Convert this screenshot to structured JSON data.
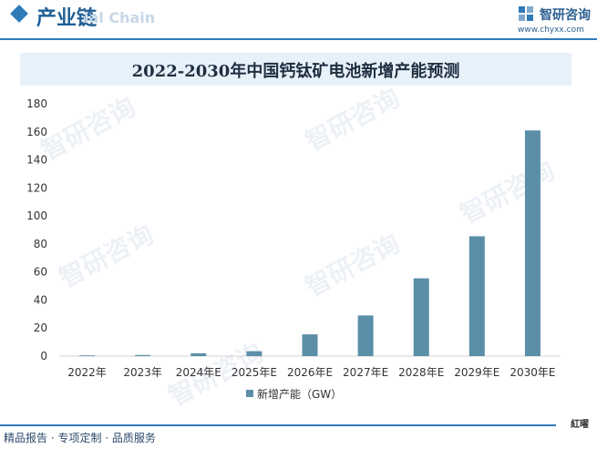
{
  "header": {
    "section_title": "产业链",
    "faded_text": "ial Chain",
    "brand_name": "智研咨询",
    "brand_url": "www.chyxx.com"
  },
  "watermark": "智研咨询",
  "colors": {
    "bar": "#5b8fa8",
    "accent": "#2f7ab9",
    "title_band": "#e7f1fa"
  },
  "footer": {
    "text": "精品报告 · 专项定制 · 品质服务",
    "mark": "紅曜"
  },
  "chart_data": {
    "type": "bar",
    "title": "2022-2030年中国钙钛矿电池新增产能预测",
    "categories": [
      "2022年",
      "2023年",
      "2024年E",
      "2025年E",
      "2026年E",
      "2027年E",
      "2028年E",
      "2029年E",
      "2030年E"
    ],
    "series": [
      {
        "name": "新增产能（GW）",
        "values": [
          0.5,
          0.8,
          2,
          3.5,
          15.5,
          29,
          55.5,
          85.5,
          161
        ]
      }
    ],
    "ylim": [
      0,
      180
    ],
    "yticks": [
      0,
      20,
      40,
      60,
      80,
      100,
      120,
      140,
      160,
      180
    ],
    "grid": false,
    "legend_position": "bottom"
  }
}
